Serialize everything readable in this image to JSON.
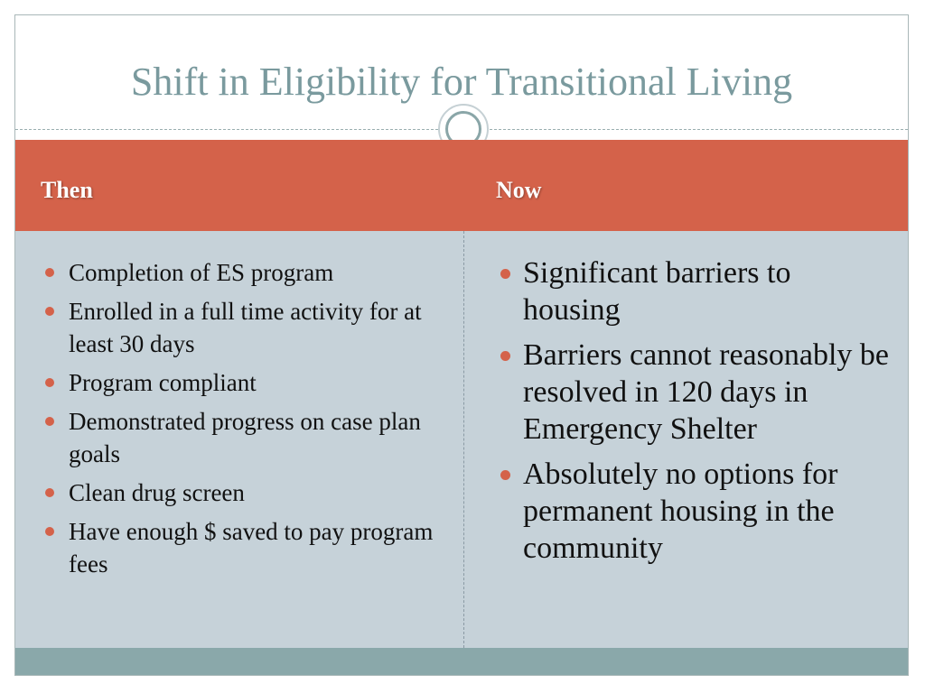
{
  "slide": {
    "title": "Shift in Eligibility for Transitional Living",
    "accent_color": "#d4624a",
    "title_color": "#7a9a9e",
    "body_color": "#c6d2d9",
    "footer_color": "#8aa8aa"
  },
  "columns": {
    "left": {
      "heading": "Then",
      "items": [
        "Completion of ES program",
        "Enrolled in a full time activity for at least 30 days",
        "Program compliant",
        "Demonstrated progress on case plan goals",
        "Clean drug screen",
        "Have enough $ saved to pay program fees"
      ]
    },
    "right": {
      "heading": "Now",
      "items": [
        "Significant barriers to housing",
        "Barriers cannot reasonably be resolved in 120 days in Emergency Shelter",
        "Absolutely no options for permanent housing in the community"
      ]
    }
  }
}
